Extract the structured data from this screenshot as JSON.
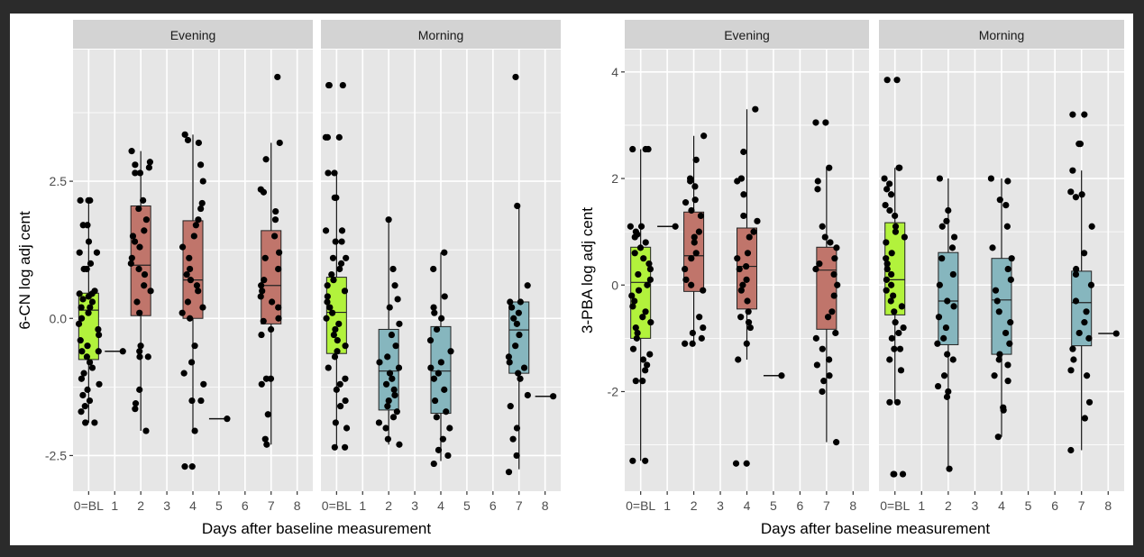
{
  "figure": {
    "panels_strip_labels": [
      "Evening",
      "Morning"
    ],
    "x_tick_labels": [
      "0=BL",
      "1",
      "2",
      "3",
      "4",
      "5",
      "6",
      "7",
      "8"
    ],
    "x_axis_title": "Days after baseline measurement"
  },
  "colors": {
    "baseline_fill": "#b2f23c",
    "evening_fill": "#c0756b",
    "morning_fill": "#86b6be",
    "point": "#000000",
    "panel_bg": "#e6e6e6",
    "strip_bg": "#d3d3d3",
    "grid": "#ffffff",
    "frame": "#2b2b2b"
  },
  "chart_data": [
    {
      "type": "boxplot",
      "title": "",
      "ylabel": "6-CN log adj cent",
      "xlabel": "Days after baseline measurement",
      "yticks": [
        -2.5,
        0.0,
        2.5
      ],
      "ytick_labels": [
        "-2.5",
        "0.0",
        "2.5"
      ],
      "ylim": [
        -3.15,
        4.9
      ],
      "xlim": [
        -0.6,
        8.6
      ],
      "grid": true,
      "facets": [
        {
          "label": "Evening",
          "groups": [
            {
              "day": 0,
              "fill": "baseline",
              "box": {
                "q1": -0.75,
                "median": 0.15,
                "q3": 0.46,
                "whisker_low": -1.9,
                "whisker_high": 2.15
              },
              "points": [
                2.15,
                2.15,
                2.15,
                1.7,
                1.7,
                1.4,
                1.2,
                1.2,
                1.0,
                0.9,
                0.9,
                0.5,
                0.45,
                0.45,
                0.4,
                0.35,
                0.3,
                0.2,
                0.2,
                0.1,
                0.0,
                -0.1,
                -0.2,
                -0.3,
                -0.4,
                -0.5,
                -0.6,
                -0.6,
                -0.7,
                -0.8,
                -0.9,
                -1.0,
                -1.1,
                -1.2,
                -1.3,
                -1.4,
                -1.5,
                -1.6,
                -1.7,
                -1.9,
                -1.9,
                -1.9
              ]
            },
            {
              "day": 1,
              "fill": "baseline",
              "box": {
                "q1": -0.6,
                "median": -0.6,
                "q3": -0.6,
                "whisker_low": -0.6,
                "whisker_high": -0.6
              },
              "points": [
                -0.6
              ]
            },
            {
              "day": 2,
              "fill": "evening",
              "box": {
                "q1": 0.05,
                "median": 0.97,
                "q3": 2.05,
                "whisker_low": -2.05,
                "whisker_high": 3.05
              },
              "points": [
                3.05,
                2.85,
                2.8,
                2.75,
                2.65,
                2.65,
                2.15,
                2.0,
                1.8,
                1.6,
                1.5,
                1.4,
                1.3,
                1.1,
                1.0,
                0.9,
                0.8,
                0.6,
                0.5,
                0.3,
                0.1,
                -0.5,
                -0.6,
                -0.7,
                -0.7,
                -1.3,
                -1.55,
                -1.65,
                -2.05
              ]
            },
            {
              "day": 4,
              "fill": "evening",
              "box": {
                "q1": 0.0,
                "median": 0.7,
                "q3": 1.78,
                "whisker_low": -2.05,
                "whisker_high": 3.35
              },
              "points": [
                3.35,
                3.25,
                3.2,
                2.8,
                2.5,
                2.1,
                2.0,
                1.8,
                1.7,
                1.5,
                1.3,
                1.1,
                0.9,
                0.8,
                0.7,
                0.6,
                0.5,
                0.3,
                0.2,
                0.1,
                0.0,
                -0.5,
                -0.8,
                -1.0,
                -1.2,
                -1.5,
                -1.5,
                -2.05,
                -2.7,
                -2.7
              ]
            },
            {
              "day": 5,
              "fill": "evening",
              "box": {
                "q1": -1.83,
                "median": -1.83,
                "q3": -1.83,
                "whisker_low": -1.83,
                "whisker_high": -1.83
              },
              "points": [
                -1.83
              ]
            },
            {
              "day": 7,
              "fill": "evening",
              "box": {
                "q1": -0.1,
                "median": 0.6,
                "q3": 1.6,
                "whisker_low": -2.3,
                "whisker_high": 3.2
              },
              "points": [
                4.4,
                3.2,
                2.9,
                2.35,
                2.3,
                1.95,
                1.8,
                1.5,
                1.2,
                1.1,
                0.9,
                0.7,
                0.6,
                0.5,
                0.4,
                0.3,
                0.2,
                0.0,
                -0.05,
                -0.2,
                -0.3,
                -1.1,
                -1.1,
                -1.2,
                -1.75,
                -2.2,
                -2.3
              ]
            }
          ]
        },
        {
          "label": "Morning",
          "groups": [
            {
              "day": 0,
              "fill": "baseline",
              "box": {
                "q1": -0.64,
                "median": 0.11,
                "q3": 0.75,
                "whisker_low": -2.35,
                "whisker_high": 2.65
              },
              "points": [
                4.25,
                4.25,
                4.25,
                3.3,
                3.3,
                3.3,
                2.65,
                2.65,
                2.2,
                2.2,
                1.6,
                1.6,
                1.4,
                1.4,
                1.1,
                1.1,
                1.0,
                0.9,
                0.8,
                0.7,
                0.6,
                0.5,
                0.4,
                0.3,
                0.2,
                0.1,
                0.0,
                -0.1,
                -0.2,
                -0.3,
                -0.4,
                -0.5,
                -0.6,
                -0.7,
                -0.9,
                -1.1,
                -1.2,
                -1.3,
                -1.5,
                -1.6,
                -1.9,
                -2.0,
                -2.35,
                -2.35
              ]
            },
            {
              "day": 2,
              "fill": "morning",
              "box": {
                "q1": -1.67,
                "median": -0.96,
                "q3": -0.2,
                "whisker_low": -2.3,
                "whisker_high": 1.8
              },
              "points": [
                1.8,
                0.9,
                0.6,
                0.35,
                0.2,
                -0.1,
                -0.3,
                -0.5,
                -0.7,
                -0.8,
                -0.9,
                -1.0,
                -1.1,
                -1.2,
                -1.3,
                -1.4,
                -1.5,
                -1.6,
                -1.7,
                -1.8,
                -1.9,
                -2.0,
                -2.2,
                -2.3
              ]
            },
            {
              "day": 4,
              "fill": "morning",
              "box": {
                "q1": -1.73,
                "median": -0.96,
                "q3": -0.15,
                "whisker_low": -2.6,
                "whisker_high": 1.2
              },
              "points": [
                1.2,
                0.9,
                0.4,
                0.2,
                0.1,
                0.0,
                -0.2,
                -0.4,
                -0.6,
                -0.8,
                -0.9,
                -1.0,
                -1.1,
                -1.3,
                -1.5,
                -1.7,
                -1.8,
                -2.0,
                -2.2,
                -2.4,
                -2.5,
                -2.65
              ]
            },
            {
              "day": 7,
              "fill": "morning",
              "box": {
                "q1": -1.0,
                "median": -0.21,
                "q3": 0.3,
                "whisker_low": -2.75,
                "whisker_high": 2.05
              },
              "points": [
                4.4,
                2.05,
                0.6,
                0.3,
                0.3,
                0.2,
                0.1,
                0.0,
                -0.1,
                -0.3,
                -0.5,
                -0.7,
                -0.8,
                -0.9,
                -1.0,
                -1.1,
                -1.4,
                -1.6,
                -2.0,
                -2.2,
                -2.5,
                -2.8
              ]
            },
            {
              "day": 8,
              "fill": "morning",
              "box": {
                "q1": -1.42,
                "median": -1.42,
                "q3": -1.42,
                "whisker_low": -1.42,
                "whisker_high": -1.42
              },
              "points": [
                -1.42
              ]
            }
          ]
        }
      ]
    },
    {
      "type": "boxplot",
      "title": "",
      "ylabel": "3-PBA log adj cent",
      "xlabel": "Days after baseline measurement",
      "yticks": [
        -2,
        0,
        2,
        4
      ],
      "ytick_labels": [
        "-2",
        "0",
        "2",
        "4"
      ],
      "ylim": [
        -3.87,
        4.42
      ],
      "xlim": [
        -0.6,
        8.6
      ],
      "grid": true,
      "facets": [
        {
          "label": "Evening",
          "groups": [
            {
              "day": 0,
              "fill": "baseline",
              "box": {
                "q1": -1.0,
                "median": 0.05,
                "q3": 0.71,
                "whisker_low": -3.3,
                "whisker_high": 2.55
              },
              "points": [
                2.55,
                2.55,
                2.55,
                1.1,
                1.1,
                1.0,
                0.95,
                0.9,
                0.8,
                0.7,
                0.6,
                0.5,
                0.4,
                0.3,
                0.2,
                0.1,
                0.0,
                -0.1,
                -0.2,
                -0.3,
                -0.4,
                -0.5,
                -0.6,
                -0.7,
                -0.8,
                -0.9,
                -1.0,
                -1.2,
                -1.3,
                -1.4,
                -1.5,
                -1.6,
                -1.8,
                -1.8,
                -3.3,
                -3.3
              ]
            },
            {
              "day": 1,
              "fill": "baseline",
              "box": {
                "q1": 1.1,
                "median": 1.1,
                "q3": 1.1,
                "whisker_low": 1.1,
                "whisker_high": 1.1
              },
              "points": [
                1.1
              ]
            },
            {
              "day": 2,
              "fill": "evening",
              "box": {
                "q1": -0.12,
                "median": 0.55,
                "q3": 1.37,
                "whisker_low": -1.15,
                "whisker_high": 2.8
              },
              "points": [
                2.8,
                2.35,
                2.0,
                1.95,
                1.85,
                1.6,
                1.55,
                1.4,
                1.3,
                1.0,
                0.9,
                0.8,
                0.6,
                0.5,
                0.3,
                0.1,
                0.0,
                -0.1,
                -0.6,
                -0.8,
                -0.9,
                -1.0,
                -1.1,
                -1.1
              ]
            },
            {
              "day": 4,
              "fill": "evening",
              "box": {
                "q1": -0.45,
                "median": 0.35,
                "q3": 1.07,
                "whisker_low": -1.4,
                "whisker_high": 3.3
              },
              "points": [
                3.3,
                2.5,
                2.0,
                2.0,
                1.95,
                1.7,
                1.3,
                1.2,
                1.0,
                0.9,
                0.6,
                0.5,
                0.35,
                0.3,
                0.1,
                0.0,
                -0.1,
                -0.3,
                -0.5,
                -0.6,
                -0.7,
                -0.8,
                -1.1,
                -1.4,
                -3.35,
                -3.35
              ]
            },
            {
              "day": 5,
              "fill": "evening",
              "box": {
                "q1": -1.7,
                "median": -1.7,
                "q3": -1.7,
                "whisker_low": -1.7,
                "whisker_high": -1.7
              },
              "points": [
                -1.7
              ]
            },
            {
              "day": 7,
              "fill": "evening",
              "box": {
                "q1": -0.83,
                "median": 0.28,
                "q3": 0.71,
                "whisker_low": -2.95,
                "whisker_high": 2.2
              },
              "points": [
                3.05,
                3.05,
                2.2,
                1.95,
                1.8,
                1.1,
                0.9,
                0.8,
                0.7,
                0.5,
                0.4,
                0.3,
                0.2,
                0.0,
                -0.2,
                -0.5,
                -0.6,
                -0.9,
                -1.0,
                -1.2,
                -1.4,
                -1.5,
                -1.7,
                -1.8,
                -2.0,
                -2.95
              ]
            }
          ]
        },
        {
          "label": "Morning",
          "groups": [
            {
              "day": 0,
              "fill": "baseline",
              "box": {
                "q1": -0.56,
                "median": 0.1,
                "q3": 1.17,
                "whisker_low": -2.2,
                "whisker_high": 2.2
              },
              "points": [
                3.85,
                3.85,
                2.2,
                2.2,
                2.0,
                1.9,
                1.8,
                1.7,
                1.5,
                1.4,
                1.3,
                1.1,
                1.0,
                0.9,
                0.8,
                0.6,
                0.5,
                0.4,
                0.3,
                0.2,
                0.1,
                0.0,
                -0.1,
                -0.2,
                -0.3,
                -0.4,
                -0.5,
                -0.7,
                -0.8,
                -0.9,
                -1.0,
                -1.2,
                -1.2,
                -1.4,
                -1.6,
                -2.2,
                -2.2,
                -3.55,
                -3.55,
                -3.55
              ]
            },
            {
              "day": 2,
              "fill": "morning",
              "box": {
                "q1": -1.12,
                "median": -0.3,
                "q3": 0.61,
                "whisker_low": -3.45,
                "whisker_high": 2.0
              },
              "points": [
                2.0,
                1.4,
                1.2,
                1.1,
                0.9,
                0.7,
                0.5,
                0.2,
                0.0,
                -0.3,
                -0.4,
                -0.6,
                -0.8,
                -1.0,
                -1.1,
                -1.3,
                -1.4,
                -1.7,
                -1.9,
                -2.0,
                -2.1,
                -3.45
              ]
            },
            {
              "day": 4,
              "fill": "morning",
              "box": {
                "q1": -1.3,
                "median": -0.28,
                "q3": 0.5,
                "whisker_low": -2.85,
                "whisker_high": 2.0
              },
              "points": [
                2.0,
                1.95,
                1.6,
                1.5,
                1.1,
                0.7,
                0.5,
                0.3,
                0.1,
                -0.1,
                -0.3,
                -0.5,
                -0.7,
                -0.9,
                -1.1,
                -1.3,
                -1.4,
                -1.5,
                -1.7,
                -1.8,
                -2.3,
                -2.35,
                -2.85
              ]
            },
            {
              "day": 7,
              "fill": "morning",
              "box": {
                "q1": -1.14,
                "median": -0.33,
                "q3": 0.26,
                "whisker_low": -3.1,
                "whisker_high": 2.15
              },
              "points": [
                3.2,
                3.2,
                2.65,
                2.65,
                2.15,
                1.7,
                1.65,
                1.75,
                1.1,
                0.6,
                0.3,
                0.2,
                0.0,
                -0.3,
                -0.5,
                -0.7,
                -0.9,
                -1.0,
                -1.2,
                -1.4,
                -1.6,
                -1.7,
                -2.2,
                -2.5,
                -3.1
              ]
            },
            {
              "day": 8,
              "fill": "morning",
              "box": {
                "q1": -0.91,
                "median": -0.91,
                "q3": -0.91,
                "whisker_low": -0.91,
                "whisker_high": -0.91
              },
              "points": [
                -0.91
              ]
            }
          ]
        }
      ]
    }
  ]
}
